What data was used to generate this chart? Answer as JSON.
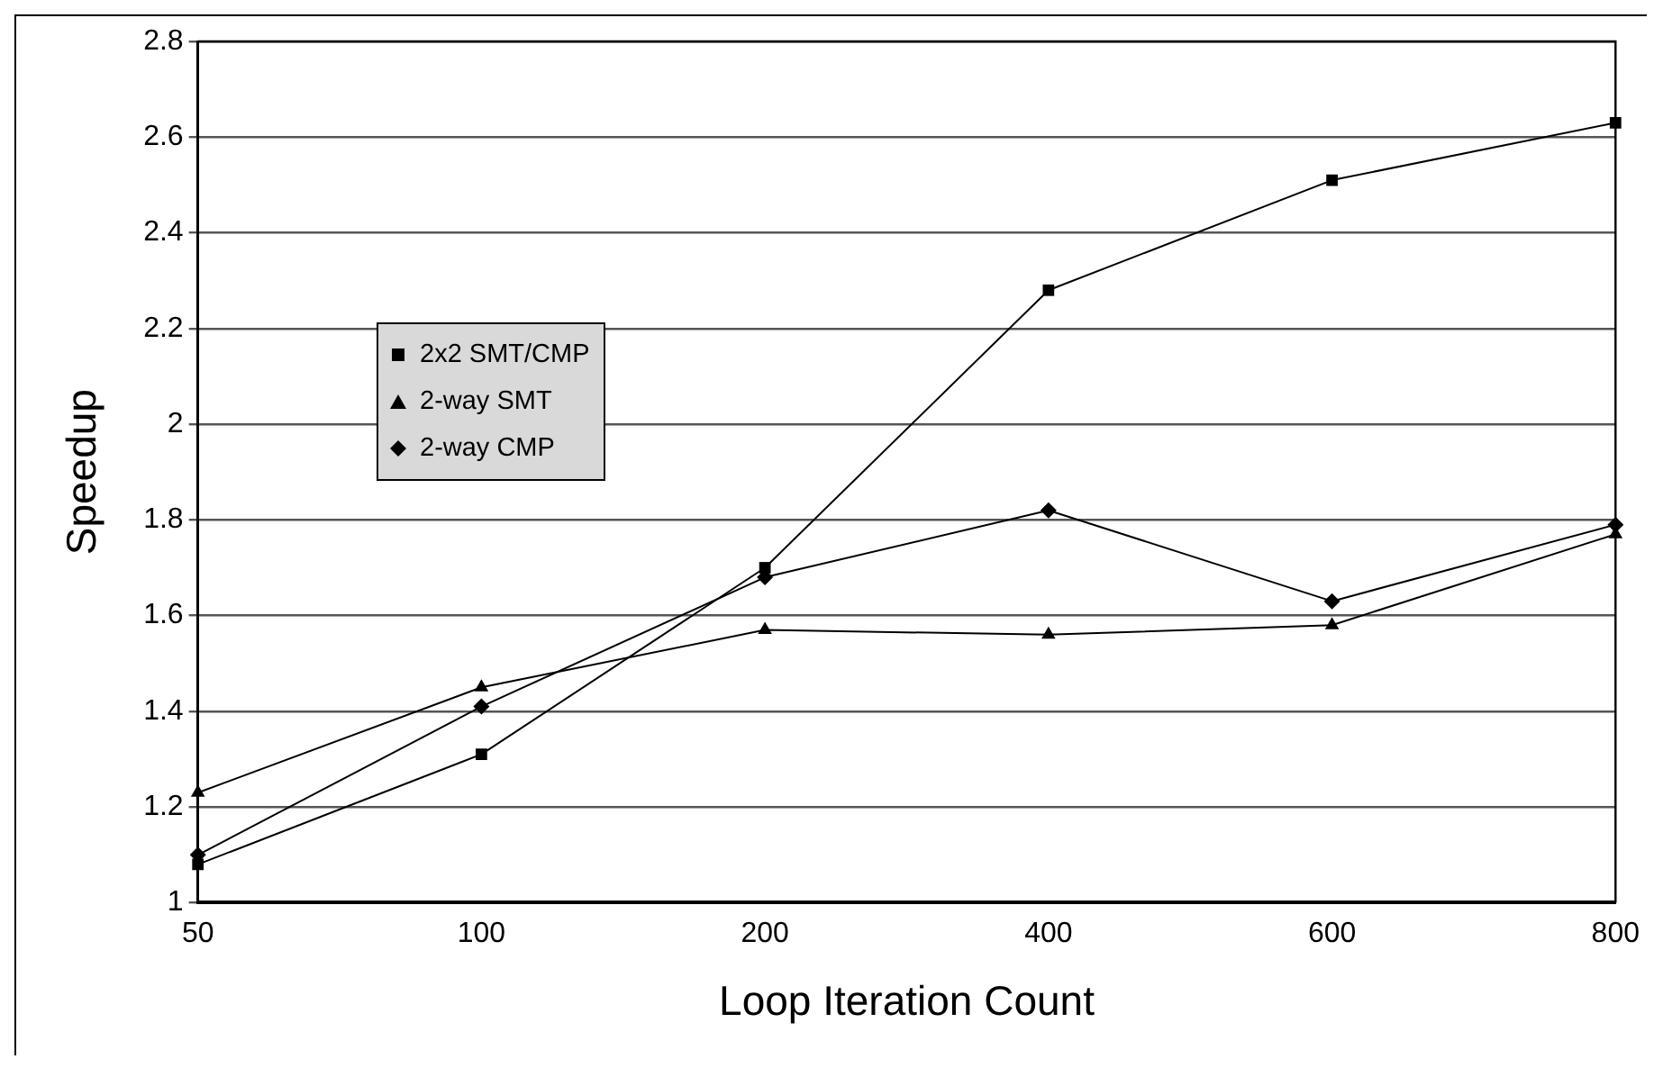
{
  "chart_data": {
    "type": "line",
    "xlabel": "Loop Iteration Count",
    "ylabel": "Speedup",
    "categories": [
      "50",
      "100",
      "200",
      "400",
      "600",
      "800"
    ],
    "series": [
      {
        "name": "2x2 SMT/CMP",
        "color": "#000000",
        "marker": "square",
        "values": [
          1.08,
          1.31,
          1.7,
          2.28,
          2.51,
          2.63
        ]
      },
      {
        "name": "2-way SMT",
        "color": "#000000",
        "marker": "triangle",
        "values": [
          1.23,
          1.45,
          1.57,
          1.56,
          1.58,
          1.77
        ]
      },
      {
        "name": "2-way CMP",
        "color": "#000000",
        "marker": "diamond",
        "values": [
          1.1,
          1.41,
          1.68,
          1.82,
          1.63,
          1.79
        ]
      }
    ],
    "ylim": [
      1,
      2.8
    ],
    "yticks": [
      1,
      1.2,
      1.4,
      1.6,
      1.8,
      2,
      2.2,
      2.4,
      2.6,
      2.8
    ],
    "grid": "y",
    "legend": "left",
    "line_style": "solid"
  }
}
